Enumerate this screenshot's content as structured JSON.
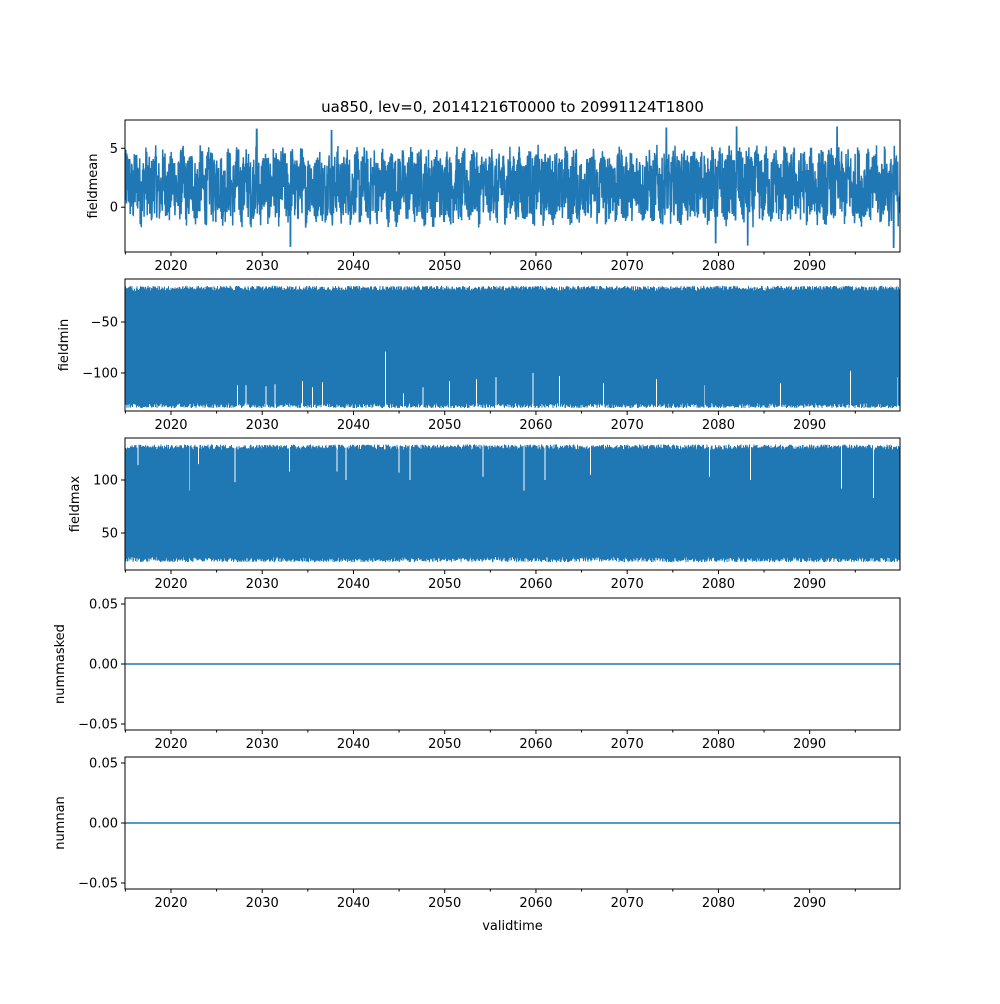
{
  "chart_data": {
    "type": "line",
    "title": "ua850, lev=0, 20141216T0000 to 20991124T1800",
    "xlabel": "validtime",
    "xlim": [
      2014.96,
      2099.9
    ],
    "xticks": [
      2020,
      2030,
      2040,
      2050,
      2060,
      2070,
      2080,
      2090
    ],
    "xtick_labels": [
      "2020",
      "2030",
      "2040",
      "2050",
      "2060",
      "2070",
      "2080",
      "2090"
    ],
    "minor_xtick_step": 5,
    "color": "#1f77b4",
    "panels": [
      {
        "ylabel": "fieldmean",
        "ylim": [
          -3.8,
          7.4
        ],
        "yticks": [
          0,
          5
        ],
        "ytick_labels": [
          "0",
          "5"
        ],
        "style": "noise",
        "typical_mean": 1.8,
        "typical_low": -1.0,
        "typical_high": 4.6,
        "extremes": [
          [
            2029.4,
            6.6
          ],
          [
            2033.1,
            -3.3
          ],
          [
            2037.6,
            6.5
          ],
          [
            2074.3,
            6.7
          ],
          [
            2082.0,
            6.8
          ],
          [
            2083.2,
            -3.2
          ],
          [
            2093.0,
            6.8
          ],
          [
            2099.2,
            -3.4
          ],
          [
            2079.7,
            -3.0
          ]
        ]
      },
      {
        "ylabel": "fieldmin",
        "ylim": [
          -137.3,
          -7.8
        ],
        "yticks": [
          -100,
          -50
        ],
        "ytick_labels": [
          "−100",
          "−50"
        ],
        "style": "band",
        "band_low": -132,
        "band_high": -17,
        "low_edge_spikes": [
          [
            2027.3,
            -112
          ],
          [
            2028.2,
            -112
          ],
          [
            2030.4,
            -113
          ],
          [
            2031.4,
            -111
          ],
          [
            2034.4,
            -108
          ],
          [
            2035.5,
            -114
          ],
          [
            2036.6,
            -109
          ],
          [
            2043.5,
            -79
          ],
          [
            2045.5,
            -120
          ],
          [
            2047.6,
            -114
          ],
          [
            2050.5,
            -108
          ],
          [
            2053.5,
            -106
          ],
          [
            2055.6,
            -104
          ],
          [
            2059.7,
            -100
          ],
          [
            2062.6,
            -103
          ],
          [
            2067.4,
            -110
          ],
          [
            2073.2,
            -106
          ],
          [
            2078.5,
            -112
          ],
          [
            2086.8,
            -110
          ],
          [
            2094.5,
            -98
          ],
          [
            2099.6,
            -104
          ]
        ]
      },
      {
        "ylabel": "fieldmax",
        "ylim": [
          15.1,
          139.6
        ],
        "yticks": [
          50,
          100
        ],
        "ytick_labels": [
          "50",
          "100"
        ],
        "style": "band",
        "band_low": 25,
        "band_high": 131,
        "high_edge_spikes": [
          [
            2016.4,
            114
          ],
          [
            2022.0,
            90
          ],
          [
            2023.0,
            115
          ],
          [
            2027.0,
            98
          ],
          [
            2033.0,
            108
          ],
          [
            2038.2,
            108
          ],
          [
            2039.2,
            100
          ],
          [
            2045.0,
            107
          ],
          [
            2046.2,
            100
          ],
          [
            2054.2,
            103
          ],
          [
            2058.7,
            90
          ],
          [
            2061.0,
            100
          ],
          [
            2066.0,
            105
          ],
          [
            2079.0,
            103
          ],
          [
            2083.5,
            100
          ],
          [
            2093.5,
            92
          ],
          [
            2097.0,
            83
          ]
        ]
      },
      {
        "ylabel": "nummasked",
        "ylim": [
          -0.055,
          0.055
        ],
        "yticks": [
          -0.05,
          0.0,
          0.05
        ],
        "ytick_labels": [
          "−0.05",
          "0.00",
          "0.05"
        ],
        "style": "constant",
        "value": 0.0
      },
      {
        "ylabel": "numnan",
        "ylim": [
          -0.055,
          0.055
        ],
        "yticks": [
          -0.05,
          0.0,
          0.05
        ],
        "ytick_labels": [
          "−0.05",
          "0.00",
          "0.05"
        ],
        "style": "constant",
        "value": 0.0
      }
    ]
  }
}
